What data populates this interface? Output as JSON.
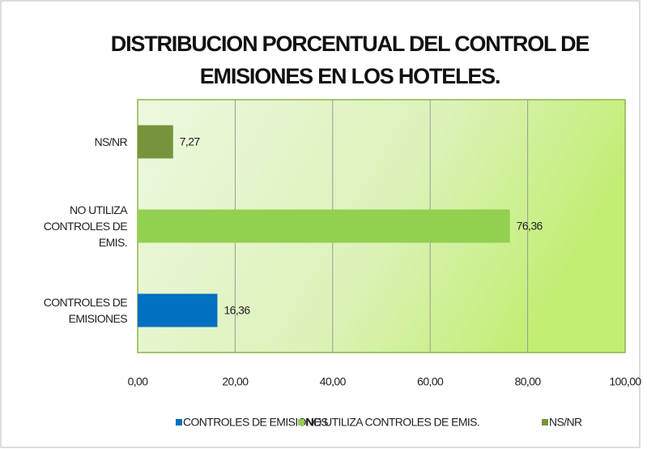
{
  "chart_data": {
    "type": "hbar",
    "title": "DISTRIBUCION PORCENTUAL DEL CONTROL DE EMISIONES EN LOS HOTELES.",
    "categories": [
      "CONTROLES DE EMISIONES",
      "NO UTILIZA CONTROLES DE EMIS.",
      "NS/NR"
    ],
    "series": [
      {
        "name": "CONTROLES DE EMISIONES",
        "color": "#0070c0",
        "values": [
          16.36,
          null,
          null
        ],
        "value_labels": [
          "16,36",
          null,
          null
        ]
      },
      {
        "name": "NO UTILIZA CONTROLES DE EMIS.",
        "color": "#92d050",
        "values": [
          null,
          76.36,
          null
        ],
        "value_labels": [
          null,
          "76,36",
          null
        ]
      },
      {
        "name": "NS/NR",
        "color": "#77933c",
        "values": [
          null,
          null,
          7.27
        ],
        "value_labels": [
          null,
          null,
          "7,27"
        ]
      }
    ],
    "xlim": [
      0,
      100
    ],
    "xticks": [
      {
        "value": 0,
        "label": "0,00"
      },
      {
        "value": 20,
        "label": "20,00"
      },
      {
        "value": 40,
        "label": "40,00"
      },
      {
        "value": 60,
        "label": "60,00"
      },
      {
        "value": 80,
        "label": "80,00"
      },
      {
        "value": 100,
        "label": "100,00"
      }
    ],
    "grid": true,
    "legend": "bottom"
  }
}
